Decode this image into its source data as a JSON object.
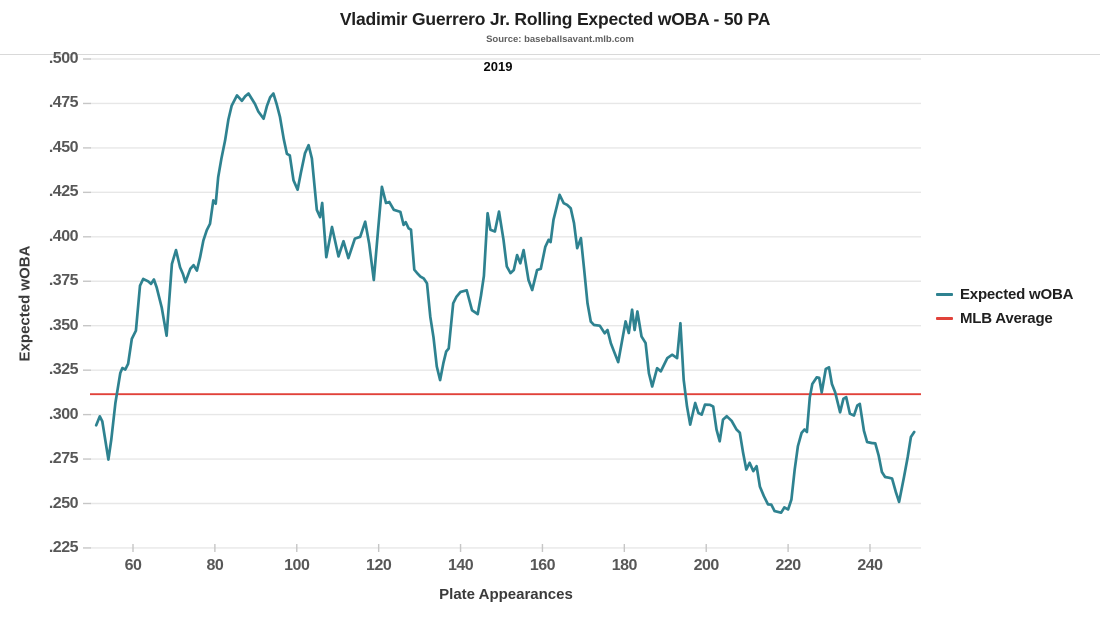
{
  "header": {
    "title": "Vladimir Guerrero Jr. Rolling Expected wOBA - 50 PA",
    "subtitle": "Source: baseballsavant.mlb.com",
    "facet_label": "2019"
  },
  "legend": [
    {
      "label": "Expected wOBA",
      "color": "#2e8290"
    },
    {
      "label": "MLB Average",
      "color": "#e1423a"
    }
  ],
  "colors": {
    "line": "#2e8290",
    "average": "#e1423a",
    "gridline": "#e7e7e7",
    "tick": "#c6c6c6"
  },
  "chart_data": {
    "type": "line",
    "title": "Vladimir Guerrero Jr. Rolling Expected wOBA - 50 PA",
    "xlabel": "Plate Appearances",
    "ylabel": "Expected wOBA",
    "xlim": [
      49,
      253
    ],
    "ylim": [
      0.225,
      0.5
    ],
    "x_ticks": [
      60,
      80,
      100,
      120,
      140,
      160,
      180,
      200,
      220,
      240
    ],
    "y_ticks": [
      0.5,
      0.475,
      0.45,
      0.425,
      0.4,
      0.375,
      0.35,
      0.325,
      0.3,
      0.275,
      0.25,
      0.225
    ],
    "y_tick_labels": [
      ".500",
      ".475",
      ".450",
      ".425",
      ".400",
      ".375",
      ".350",
      ".325",
      ".300",
      ".275",
      ".250",
      ".225"
    ],
    "grid": "horizontal-only",
    "legend_position": "right",
    "series": [
      {
        "name": "Expected wOBA",
        "type": "line",
        "points": [
          [
            51.0,
            0.294
          ],
          [
            51.9,
            0.299
          ],
          [
            52.5,
            0.2962
          ],
          [
            53.2,
            0.286
          ],
          [
            54.0,
            0.2747
          ],
          [
            54.7,
            0.286
          ],
          [
            55.7,
            0.3065
          ],
          [
            56.9,
            0.3234
          ],
          [
            57.4,
            0.3262
          ],
          [
            58.1,
            0.3253
          ],
          [
            58.8,
            0.3285
          ],
          [
            59.7,
            0.3426
          ],
          [
            60.7,
            0.3472
          ],
          [
            61.7,
            0.3725
          ],
          [
            62.5,
            0.3763
          ],
          [
            63.7,
            0.375
          ],
          [
            64.4,
            0.3735
          ],
          [
            65.1,
            0.376
          ],
          [
            65.8,
            0.3715
          ],
          [
            67.0,
            0.3603
          ],
          [
            68.2,
            0.3444
          ],
          [
            69.5,
            0.3847
          ],
          [
            70.5,
            0.3925
          ],
          [
            71.5,
            0.3828
          ],
          [
            72.2,
            0.379
          ],
          [
            72.8,
            0.3745
          ],
          [
            74.0,
            0.382
          ],
          [
            74.8,
            0.384
          ],
          [
            75.6,
            0.381
          ],
          [
            76.4,
            0.3885
          ],
          [
            77.2,
            0.398
          ],
          [
            78.0,
            0.4036
          ],
          [
            78.8,
            0.4073
          ],
          [
            79.6,
            0.4205
          ],
          [
            80.2,
            0.4186
          ],
          [
            80.8,
            0.4336
          ],
          [
            81.6,
            0.444
          ],
          [
            82.5,
            0.4542
          ],
          [
            83.3,
            0.466
          ],
          [
            84.1,
            0.4738
          ],
          [
            85.4,
            0.4795
          ],
          [
            86.6,
            0.4765
          ],
          [
            87.4,
            0.479
          ],
          [
            88.2,
            0.4806
          ],
          [
            89.8,
            0.4747
          ],
          [
            90.6,
            0.4705
          ],
          [
            91.9,
            0.4664
          ],
          [
            92.7,
            0.4735
          ],
          [
            93.5,
            0.4785
          ],
          [
            94.3,
            0.4806
          ],
          [
            95.1,
            0.4745
          ],
          [
            95.9,
            0.4673
          ],
          [
            96.8,
            0.4551
          ],
          [
            97.6,
            0.4467
          ],
          [
            98.3,
            0.4458
          ],
          [
            99.2,
            0.4318
          ],
          [
            100.2,
            0.4265
          ],
          [
            101.0,
            0.436
          ],
          [
            102.0,
            0.447
          ],
          [
            102.9,
            0.4515
          ],
          [
            103.7,
            0.444
          ],
          [
            104.9,
            0.4152
          ],
          [
            105.7,
            0.411
          ],
          [
            106.2,
            0.419
          ],
          [
            107.2,
            0.3885
          ],
          [
            108.6,
            0.4055
          ],
          [
            110.2,
            0.389
          ],
          [
            111.4,
            0.3975
          ],
          [
            112.6,
            0.388
          ],
          [
            114.2,
            0.399
          ],
          [
            115.5,
            0.4
          ],
          [
            116.7,
            0.4085
          ],
          [
            117.7,
            0.396
          ],
          [
            118.8,
            0.3757
          ],
          [
            119.8,
            0.402
          ],
          [
            120.8,
            0.4281
          ],
          [
            121.8,
            0.419
          ],
          [
            122.6,
            0.4196
          ],
          [
            123.7,
            0.4152
          ],
          [
            125.3,
            0.414
          ],
          [
            126.1,
            0.4067
          ],
          [
            126.6,
            0.4082
          ],
          [
            127.3,
            0.4048
          ],
          [
            127.9,
            0.404
          ],
          [
            128.7,
            0.3815
          ],
          [
            129.4,
            0.3795
          ],
          [
            130.2,
            0.3776
          ],
          [
            131.0,
            0.3766
          ],
          [
            131.8,
            0.3738
          ],
          [
            132.6,
            0.355
          ],
          [
            133.4,
            0.3435
          ],
          [
            134.2,
            0.327
          ],
          [
            135.0,
            0.3194
          ],
          [
            135.8,
            0.329
          ],
          [
            136.5,
            0.3355
          ],
          [
            137.1,
            0.3372
          ],
          [
            138.2,
            0.3626
          ],
          [
            139.0,
            0.3663
          ],
          [
            140.0,
            0.369
          ],
          [
            141.5,
            0.3699
          ],
          [
            142.8,
            0.3587
          ],
          [
            144.2,
            0.3565
          ],
          [
            145.0,
            0.367
          ],
          [
            145.7,
            0.378
          ],
          [
            146.6,
            0.4133
          ],
          [
            147.3,
            0.404
          ],
          [
            148.4,
            0.403
          ],
          [
            149.4,
            0.4142
          ],
          [
            150.5,
            0.3983
          ],
          [
            151.3,
            0.3833
          ],
          [
            152.2,
            0.3796
          ],
          [
            153.0,
            0.3813
          ],
          [
            153.8,
            0.3897
          ],
          [
            154.6,
            0.3851
          ],
          [
            155.4,
            0.3925
          ],
          [
            156.6,
            0.3757
          ],
          [
            157.5,
            0.3701
          ],
          [
            158.7,
            0.3813
          ],
          [
            159.6,
            0.382
          ],
          [
            160.7,
            0.3944
          ],
          [
            161.5,
            0.3983
          ],
          [
            162.0,
            0.397
          ],
          [
            162.7,
            0.4096
          ],
          [
            163.6,
            0.418
          ],
          [
            164.2,
            0.4236
          ],
          [
            165.2,
            0.4189
          ],
          [
            166.0,
            0.418
          ],
          [
            166.9,
            0.4161
          ],
          [
            167.7,
            0.4077
          ],
          [
            168.5,
            0.3936
          ],
          [
            169.4,
            0.3992
          ],
          [
            170.2,
            0.3813
          ],
          [
            171.0,
            0.3626
          ],
          [
            171.8,
            0.3523
          ],
          [
            172.6,
            0.3504
          ],
          [
            174.0,
            0.35
          ],
          [
            175.2,
            0.3457
          ],
          [
            175.9,
            0.3476
          ],
          [
            176.7,
            0.3402
          ],
          [
            177.5,
            0.3354
          ],
          [
            178.5,
            0.3295
          ],
          [
            180.3,
            0.3524
          ],
          [
            181.1,
            0.3459
          ],
          [
            181.9,
            0.359
          ],
          [
            182.5,
            0.3476
          ],
          [
            183.2,
            0.358
          ],
          [
            184.2,
            0.344
          ],
          [
            185.2,
            0.3402
          ],
          [
            186.0,
            0.3233
          ],
          [
            186.8,
            0.3158
          ],
          [
            188.0,
            0.3261
          ],
          [
            188.9,
            0.3243
          ],
          [
            190.5,
            0.3318
          ],
          [
            191.7,
            0.3337
          ],
          [
            192.9,
            0.3318
          ],
          [
            193.7,
            0.3514
          ],
          [
            194.5,
            0.3195
          ],
          [
            195.3,
            0.3046
          ],
          [
            196.1,
            0.2944
          ],
          [
            197.3,
            0.3065
          ],
          [
            198.1,
            0.3009
          ],
          [
            198.9,
            0.3
          ],
          [
            199.7,
            0.3056
          ],
          [
            200.9,
            0.3055
          ],
          [
            201.7,
            0.3045
          ],
          [
            202.5,
            0.2916
          ],
          [
            203.3,
            0.285
          ],
          [
            204.1,
            0.2972
          ],
          [
            205.0,
            0.2991
          ],
          [
            206.2,
            0.2965
          ],
          [
            207.4,
            0.2916
          ],
          [
            208.2,
            0.2898
          ],
          [
            209.0,
            0.2785
          ],
          [
            209.8,
            0.2691
          ],
          [
            210.6,
            0.2729
          ],
          [
            211.5,
            0.2682
          ],
          [
            212.3,
            0.271
          ],
          [
            213.1,
            0.2595
          ],
          [
            214.1,
            0.2541
          ],
          [
            215.1,
            0.2495
          ],
          [
            215.9,
            0.2494
          ],
          [
            216.7,
            0.2457
          ],
          [
            218.3,
            0.2448
          ],
          [
            219.1,
            0.2478
          ],
          [
            220.0,
            0.2466
          ],
          [
            220.8,
            0.2522
          ],
          [
            221.6,
            0.2691
          ],
          [
            222.4,
            0.2822
          ],
          [
            223.3,
            0.2897
          ],
          [
            224.0,
            0.2916
          ],
          [
            224.6,
            0.2902
          ],
          [
            225.3,
            0.3097
          ],
          [
            225.9,
            0.3172
          ],
          [
            227.0,
            0.321
          ],
          [
            227.6,
            0.3207
          ],
          [
            228.2,
            0.3125
          ],
          [
            229.2,
            0.3257
          ],
          [
            230.0,
            0.3266
          ],
          [
            230.7,
            0.3172
          ],
          [
            231.5,
            0.3125
          ],
          [
            232.7,
            0.3013
          ],
          [
            233.5,
            0.3089
          ],
          [
            234.2,
            0.3098
          ],
          [
            235.1,
            0.3005
          ],
          [
            236.1,
            0.2995
          ],
          [
            236.9,
            0.3051
          ],
          [
            237.5,
            0.306
          ],
          [
            238.5,
            0.291
          ],
          [
            239.3,
            0.2846
          ],
          [
            240.4,
            0.284
          ],
          [
            241.3,
            0.2838
          ],
          [
            242.1,
            0.2771
          ],
          [
            242.9,
            0.2677
          ],
          [
            243.7,
            0.2649
          ],
          [
            244.6,
            0.2645
          ],
          [
            245.4,
            0.264
          ],
          [
            246.3,
            0.2565
          ],
          [
            247.1,
            0.2509
          ],
          [
            248.3,
            0.2649
          ],
          [
            249.2,
            0.2761
          ],
          [
            250.0,
            0.2874
          ],
          [
            250.8,
            0.2902
          ]
        ]
      },
      {
        "name": "MLB Average",
        "type": "hline",
        "value": 0.3115
      }
    ]
  }
}
